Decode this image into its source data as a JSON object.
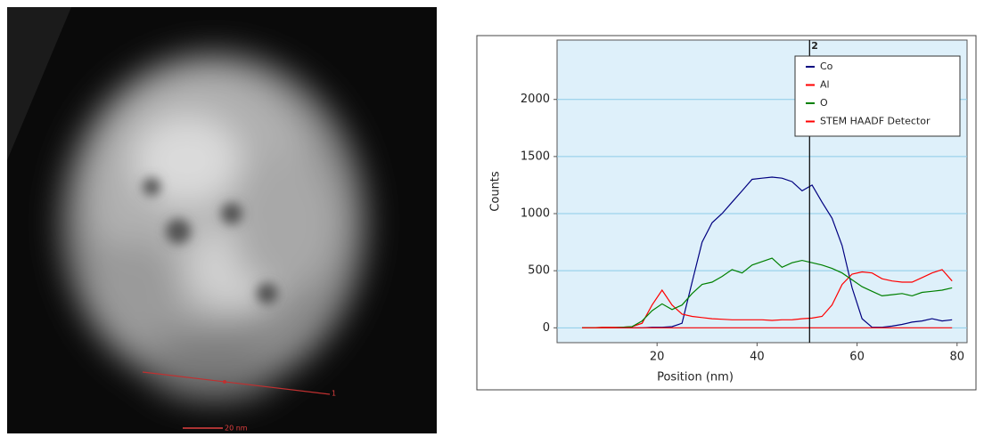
{
  "image": {
    "scale_label": "20 nm",
    "marker_label": "1"
  },
  "chart_data": {
    "type": "line",
    "x_label": "Position (nm)",
    "y_label": "Counts",
    "x": [
      5,
      7,
      9,
      11,
      13,
      15,
      17,
      19,
      21,
      23,
      25,
      27,
      29,
      31,
      33,
      35,
      37,
      39,
      41,
      43,
      45,
      47,
      49,
      51,
      53,
      55,
      57,
      59,
      61,
      63,
      65,
      67,
      69,
      71,
      73,
      75,
      77,
      79
    ],
    "series": [
      {
        "name": "Co",
        "color": "#000080",
        "values": [
          0,
          0,
          0,
          0,
          0,
          0,
          0,
          5,
          5,
          10,
          40,
          400,
          750,
          920,
          1000,
          1100,
          1200,
          1300,
          1310,
          1320,
          1310,
          1280,
          1200,
          1250,
          1100,
          960,
          720,
          350,
          80,
          5,
          5,
          15,
          30,
          50,
          60,
          80,
          60,
          70
        ]
      },
      {
        "name": "Al",
        "color": "#ff0000",
        "values": [
          0,
          0,
          5,
          5,
          5,
          10,
          40,
          200,
          330,
          200,
          120,
          100,
          90,
          80,
          75,
          70,
          70,
          70,
          70,
          65,
          70,
          70,
          80,
          85,
          100,
          200,
          380,
          470,
          490,
          480,
          430,
          410,
          400,
          400,
          440,
          480,
          510,
          410
        ]
      },
      {
        "name": "O",
        "color": "#008000",
        "values": [
          0,
          0,
          0,
          0,
          5,
          10,
          60,
          150,
          210,
          160,
          200,
          300,
          380,
          400,
          450,
          510,
          480,
          550,
          580,
          610,
          530,
          570,
          590,
          570,
          550,
          520,
          480,
          420,
          360,
          320,
          280,
          290,
          300,
          280,
          310,
          320,
          330,
          350
        ]
      },
      {
        "name": "STEM HAADF Detector",
        "color": "#ff0000",
        "values": [
          0,
          0,
          0,
          0,
          0,
          0,
          0,
          0,
          0,
          0,
          0,
          0,
          0,
          0,
          0,
          0,
          0,
          0,
          0,
          0,
          0,
          0,
          0,
          0,
          0,
          0,
          0,
          0,
          0,
          0,
          0,
          0,
          0,
          0,
          0,
          0,
          0,
          0
        ]
      }
    ],
    "xlim": [
      0,
      82
    ],
    "ylim": [
      -130,
      2520
    ],
    "xticks": [
      20,
      40,
      60,
      80
    ],
    "yticks": [
      0,
      500,
      1000,
      1500,
      2000
    ],
    "grid": true,
    "legend": "top-right",
    "cursor": {
      "x": 50.5,
      "label": "2"
    }
  }
}
